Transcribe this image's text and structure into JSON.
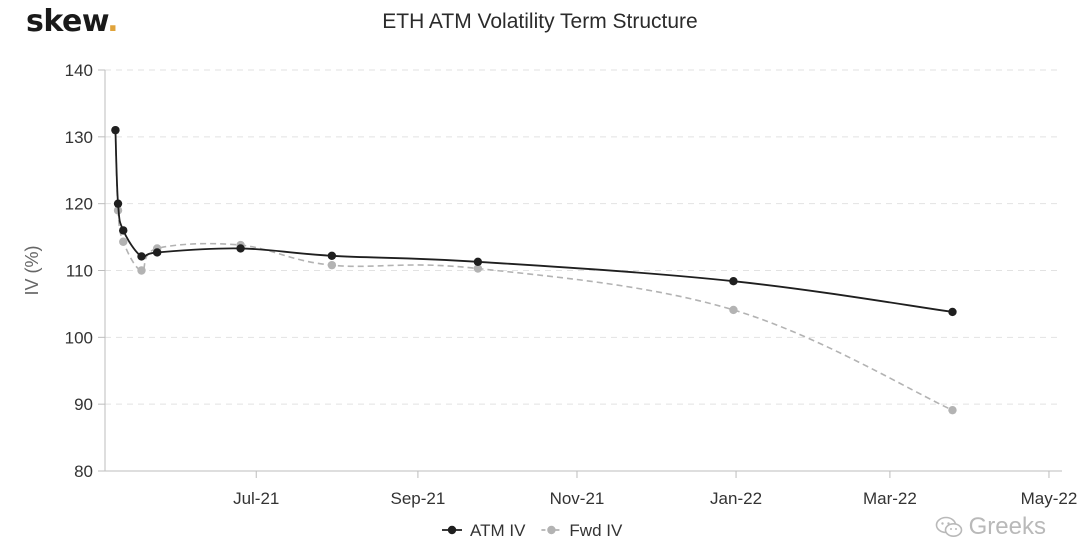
{
  "logo": {
    "text": "skew",
    "dot": "."
  },
  "watermark": {
    "text": "Greeks",
    "icon": "wechat-icon"
  },
  "colors": {
    "atm": "#1f1f1f",
    "fwd": "#b3b3b3",
    "grid": "#e2e2e2",
    "axis": "#bdbdbd"
  },
  "chart_data": {
    "type": "line",
    "title": "ETH ATM Volatility Term Structure",
    "xlabel": "",
    "ylabel": "IV (%)",
    "ylim": [
      80,
      140
    ],
    "yticks": [
      80,
      90,
      100,
      110,
      120,
      130,
      140
    ],
    "xticks": [
      {
        "date": "2021-07-01",
        "label": "Jul-21"
      },
      {
        "date": "2021-09-01",
        "label": "Sep-21"
      },
      {
        "date": "2021-11-01",
        "label": "Nov-21"
      },
      {
        "date": "2022-01-01",
        "label": "Jan-22"
      },
      {
        "date": "2022-03-01",
        "label": "Mar-22"
      },
      {
        "date": "2022-05-01",
        "label": "May-22"
      }
    ],
    "xlim": [
      "2021-05-04",
      "2022-05-06"
    ],
    "grid": true,
    "legend": "bottom-center",
    "series": [
      {
        "name": "ATM IV",
        "style": "solid",
        "points": [
          {
            "x": "2021-05-08",
            "y": 131
          },
          {
            "x": "2021-05-09",
            "y": 120
          },
          {
            "x": "2021-05-11",
            "y": 116
          },
          {
            "x": "2021-05-18",
            "y": 112.1
          },
          {
            "x": "2021-05-24",
            "y": 112.7
          },
          {
            "x": "2021-06-25",
            "y": 113.3
          },
          {
            "x": "2021-07-30",
            "y": 112.2
          },
          {
            "x": "2021-09-24",
            "y": 111.3
          },
          {
            "x": "2021-12-31",
            "y": 108.4
          },
          {
            "x": "2022-03-25",
            "y": 103.8
          }
        ]
      },
      {
        "name": "Fwd IV",
        "style": "dashed",
        "points": [
          {
            "x": "2021-05-08",
            "y": 131
          },
          {
            "x": "2021-05-09",
            "y": 119
          },
          {
            "x": "2021-05-11",
            "y": 114.3
          },
          {
            "x": "2021-05-18",
            "y": 110
          },
          {
            "x": "2021-05-24",
            "y": 113.3
          },
          {
            "x": "2021-06-25",
            "y": 113.8
          },
          {
            "x": "2021-07-30",
            "y": 110.8
          },
          {
            "x": "2021-09-24",
            "y": 110.3
          },
          {
            "x": "2021-12-31",
            "y": 104.1
          },
          {
            "x": "2022-03-25",
            "y": 89.1
          }
        ]
      }
    ]
  }
}
